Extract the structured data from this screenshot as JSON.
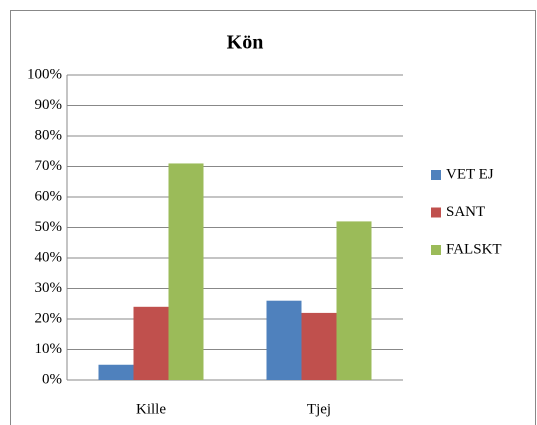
{
  "chart_data": {
    "type": "bar",
    "title": "Kön",
    "categories": [
      "Kille",
      "Tjej"
    ],
    "series": [
      {
        "name": "VET EJ",
        "color": "#4f81bd",
        "values": [
          5,
          26
        ]
      },
      {
        "name": "SANT",
        "color": "#c0504d",
        "values": [
          24,
          22
        ]
      },
      {
        "name": "FALSKT",
        "color": "#9bbb59",
        "values": [
          71,
          52
        ]
      }
    ],
    "ylim": [
      0,
      100
    ],
    "yticks": [
      {
        "value": 0,
        "label": "0%"
      },
      {
        "value": 10,
        "label": "10%"
      },
      {
        "value": 20,
        "label": "20%"
      },
      {
        "value": 30,
        "label": "30%"
      },
      {
        "value": 40,
        "label": "40%"
      },
      {
        "value": 50,
        "label": "50%"
      },
      {
        "value": 60,
        "label": "60%"
      },
      {
        "value": 70,
        "label": "70%"
      },
      {
        "value": 80,
        "label": "80%"
      },
      {
        "value": 90,
        "label": "90%"
      },
      {
        "value": 100,
        "label": "100%"
      }
    ],
    "grid": true,
    "legend": "right"
  }
}
